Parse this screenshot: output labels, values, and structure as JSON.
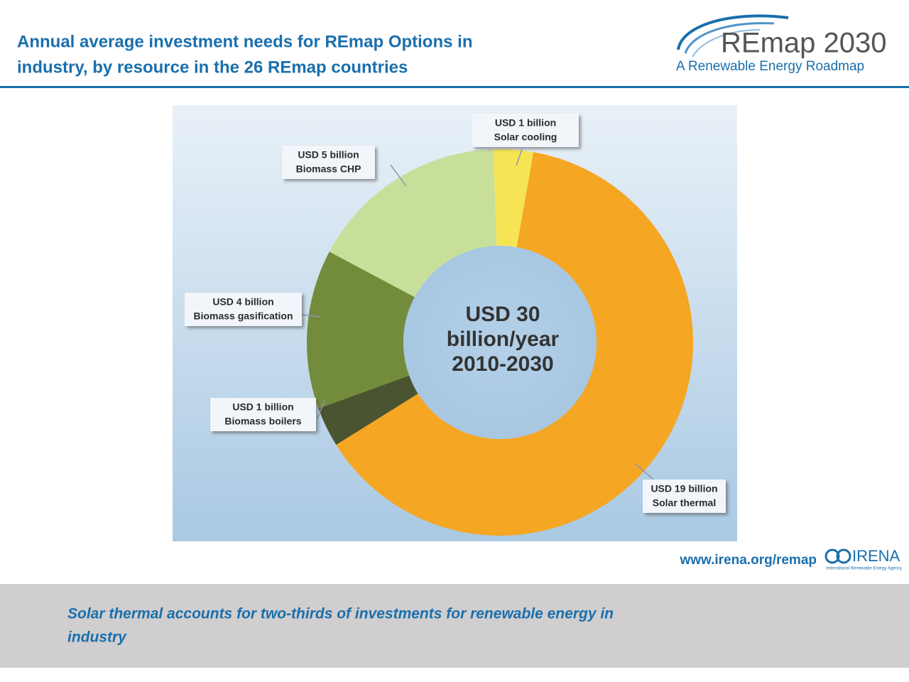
{
  "header": {
    "title_lines": [
      "Annual average investment needs for REmap Options in",
      "industry, by resource in the 26 REmap countries"
    ],
    "logo_title": "REmap 2030",
    "logo_subtitle": "A Renewable Energy Roadmap"
  },
  "chart_data": {
    "type": "pie",
    "donut": true,
    "center_text": [
      "USD 30",
      "billion/year",
      "2010-2030"
    ],
    "categories": [
      "Solar cooling",
      "Solar thermal",
      "Biomass boilers",
      "Biomass gasification",
      "Biomass CHP"
    ],
    "values": [
      1,
      19,
      1,
      4,
      5
    ],
    "value_labels": [
      "USD 1 billion",
      "USD 19 billion",
      "USD 1 billion",
      "USD 4 billion",
      "USD 5 billion"
    ],
    "colors": [
      "#f7e455",
      "#f5a623",
      "#4a5430",
      "#738c3c",
      "#c8df9a"
    ]
  },
  "footer": {
    "url": "www.irena.org/remap",
    "irena": "IRENA",
    "irena_full": "International Renewable Energy Agency",
    "caption_lines": [
      "Solar thermal accounts for two-thirds of investments for renewable energy in",
      "industry"
    ]
  }
}
